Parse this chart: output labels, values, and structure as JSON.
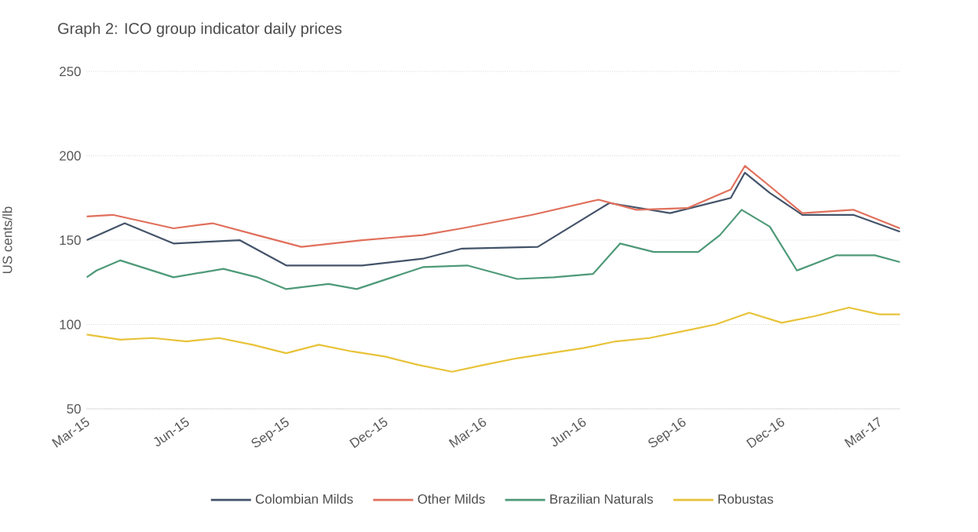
{
  "chart_data": {
    "type": "line",
    "title": "Graph 2: ICO group indicator daily prices",
    "ylabel": "US cents/lb",
    "xlim": [
      "2015-03-01",
      "2017-03-20"
    ],
    "xticks": [
      {
        "value": "2015-03-01",
        "label": "Mar-15"
      },
      {
        "value": "2015-06-01",
        "label": "Jun-15"
      },
      {
        "value": "2015-09-01",
        "label": "Sep-15"
      },
      {
        "value": "2015-12-01",
        "label": "Dec-15"
      },
      {
        "value": "2016-03-01",
        "label": "Mar-16"
      },
      {
        "value": "2016-06-01",
        "label": "Jun-16"
      },
      {
        "value": "2016-09-01",
        "label": "Sep-16"
      },
      {
        "value": "2016-12-01",
        "label": "Dec-16"
      },
      {
        "value": "2017-03-01",
        "label": "Mar-17"
      }
    ],
    "ylim": [
      50,
      250
    ],
    "yticks": [
      50,
      100,
      150,
      200,
      250
    ],
    "grid": "y",
    "legend": "bottom",
    "series": [
      {
        "name": "Colombian Milds",
        "color": "#44546a",
        "x": [
          "2015-03-01",
          "2015-04-05",
          "2015-05-20",
          "2015-07-20",
          "2015-09-01",
          "2015-11-10",
          "2016-01-05",
          "2016-02-10",
          "2016-04-20",
          "2016-06-25",
          "2016-08-20",
          "2016-10-15",
          "2016-10-28",
          "2016-11-20",
          "2016-12-20",
          "2017-02-05",
          "2017-03-20"
        ],
        "values": [
          150,
          160,
          148,
          150,
          135,
          135,
          139,
          145,
          146,
          172,
          166,
          175,
          190,
          178,
          165,
          165,
          155
        ]
      },
      {
        "name": "Other Milds",
        "color": "#e0705c",
        "x": [
          "2015-03-01",
          "2015-03-25",
          "2015-05-20",
          "2015-06-25",
          "2015-08-05",
          "2015-09-15",
          "2015-11-10",
          "2016-01-05",
          "2016-02-10",
          "2016-04-15",
          "2016-06-15",
          "2016-07-20",
          "2016-09-05",
          "2016-10-15",
          "2016-10-28",
          "2016-11-20",
          "2016-12-20",
          "2017-02-05",
          "2017-03-20"
        ],
        "values": [
          164,
          165,
          157,
          160,
          153,
          146,
          150,
          153,
          157,
          165,
          174,
          168,
          169,
          180,
          194,
          182,
          166,
          168,
          157
        ]
      },
      {
        "name": "Brazilian Naturals",
        "color": "#4e9a78",
        "x": [
          "2015-03-01",
          "2015-03-10",
          "2015-04-01",
          "2015-05-20",
          "2015-07-05",
          "2015-08-05",
          "2015-09-01",
          "2015-10-10",
          "2015-11-05",
          "2016-01-05",
          "2016-02-15",
          "2016-04-01",
          "2016-05-05",
          "2016-06-10",
          "2016-07-05",
          "2016-08-05",
          "2016-09-15",
          "2016-10-05",
          "2016-10-25",
          "2016-11-20",
          "2016-12-15",
          "2017-01-20",
          "2017-02-25",
          "2017-03-20"
        ],
        "values": [
          128,
          132,
          138,
          128,
          133,
          128,
          121,
          124,
          121,
          134,
          135,
          127,
          128,
          130,
          148,
          143,
          143,
          153,
          168,
          158,
          132,
          141,
          141,
          137
        ]
      },
      {
        "name": "Robustas",
        "color": "#e8c33a",
        "x": [
          "2015-03-01",
          "2015-04-01",
          "2015-05-01",
          "2015-06-01",
          "2015-07-01",
          "2015-08-01",
          "2015-09-01",
          "2015-10-01",
          "2015-11-01",
          "2015-12-01",
          "2016-01-01",
          "2016-02-01",
          "2016-03-01",
          "2016-04-01",
          "2016-05-01",
          "2016-06-01",
          "2016-07-01",
          "2016-08-01",
          "2016-09-01",
          "2016-10-01",
          "2016-11-01",
          "2016-12-01",
          "2017-01-01",
          "2017-02-01",
          "2017-03-01",
          "2017-03-20"
        ],
        "values": [
          94,
          91,
          92,
          90,
          92,
          88,
          83,
          88,
          84,
          81,
          76,
          72,
          76,
          80,
          83,
          86,
          90,
          92,
          96,
          100,
          107,
          101,
          105,
          110,
          106,
          106
        ]
      }
    ]
  }
}
